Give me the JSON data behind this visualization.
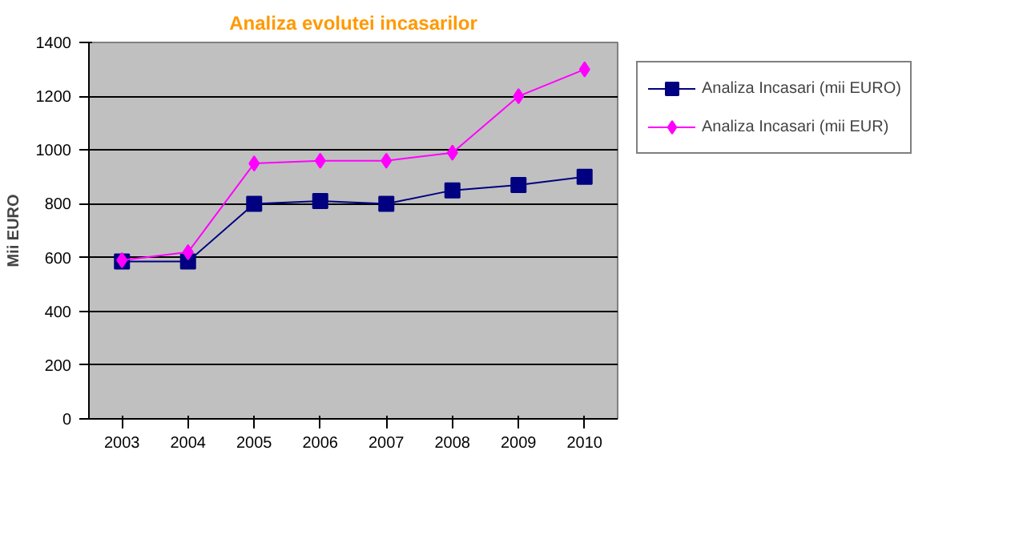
{
  "chart_data": {
    "type": "line",
    "title": "Analiza evolutei incasarilor",
    "ylabel": "Mii EURO",
    "categories": [
      "2003",
      "2004",
      "2005",
      "2006",
      "2007",
      "2008",
      "2009",
      "2010"
    ],
    "series": [
      {
        "name": "Analiza Incasari (mii EURO)",
        "color": "#000080",
        "marker": "square",
        "values": [
          585,
          585,
          800,
          810,
          800,
          850,
          870,
          900
        ]
      },
      {
        "name": "Analiza Incasari (mii EUR)",
        "color": "#ff00ff",
        "marker": "diamond",
        "values": [
          590,
          620,
          950,
          960,
          960,
          990,
          1200,
          1300
        ]
      }
    ],
    "ylim": [
      0,
      1400
    ],
    "yticks": [
      0,
      200,
      400,
      600,
      800,
      1000,
      1200,
      1400
    ],
    "grid": "y",
    "legend": "right"
  }
}
